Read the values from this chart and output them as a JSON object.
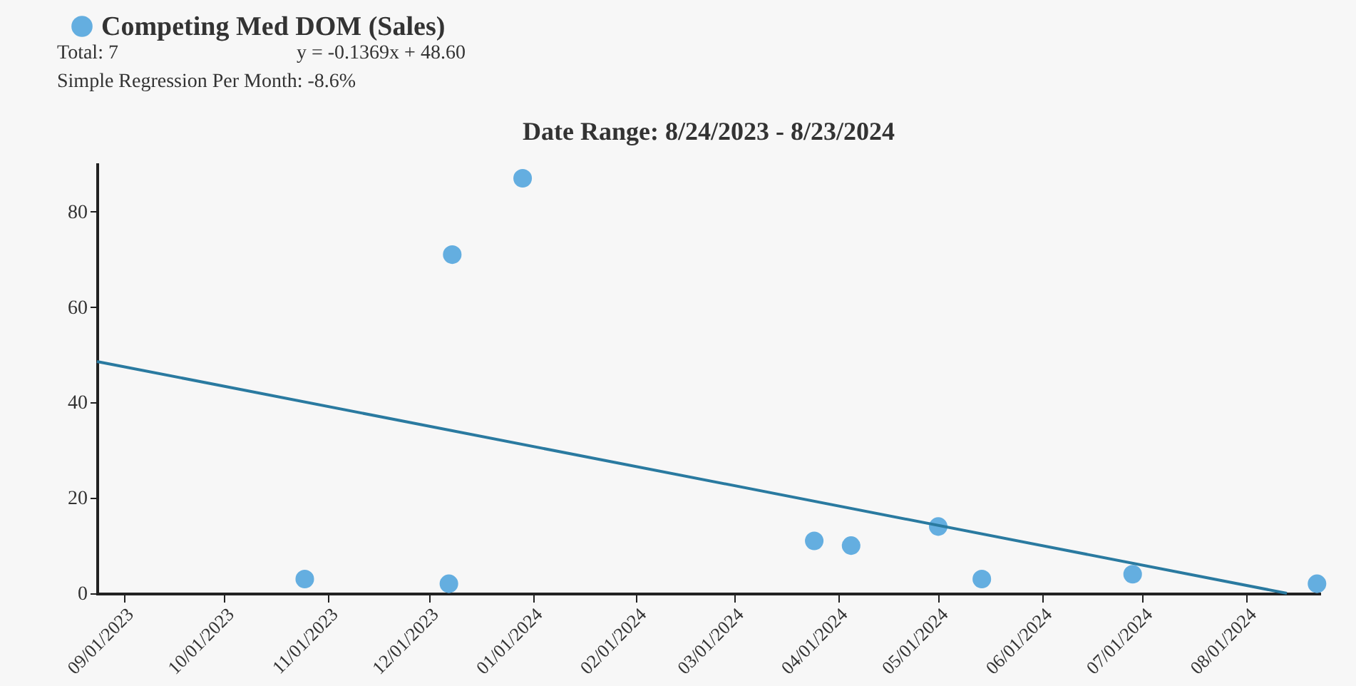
{
  "chart_data": {
    "type": "scatter",
    "title": "Date Range: 8/24/2023 - 8/23/2024",
    "annotations": [
      "Total: 7",
      "y = -0.1369x + 48.60",
      "Simple Regression Per Month: -8.6%"
    ],
    "series": [
      {
        "name": "Competing Med DOM (Sales)",
        "color": "#64aee0",
        "type": "scatter",
        "marker": "circle",
        "x": [
          "2023-10-25",
          "2023-12-08",
          "2023-12-07",
          "2023-12-29",
          "2024-03-25",
          "2024-04-05",
          "2024-05-01",
          "2024-05-14",
          "2024-06-28",
          "2024-08-22"
        ],
        "values": [
          3,
          71,
          2,
          87,
          11,
          10,
          14,
          3,
          4,
          2
        ]
      },
      {
        "color": "#2a7aa0",
        "type": "line",
        "x": [
          "2023-08-24",
          "2024-08-13"
        ],
        "values": [
          48.6,
          0
        ]
      }
    ],
    "xlim": [
      "2023-08-24",
      "2024-08-23"
    ],
    "xticks": [
      {
        "value": "2023-09-01",
        "label": "09/01/2023"
      },
      {
        "value": "2023-10-01",
        "label": "10/01/2023"
      },
      {
        "value": "2023-11-01",
        "label": "11/01/2023"
      },
      {
        "value": "2023-12-01",
        "label": "12/01/2023"
      },
      {
        "value": "2024-01-01",
        "label": "01/01/2024"
      },
      {
        "value": "2024-02-01",
        "label": "02/01/2024"
      },
      {
        "value": "2024-03-01",
        "label": "03/01/2024"
      },
      {
        "value": "2024-04-01",
        "label": "04/01/2024"
      },
      {
        "value": "2024-05-01",
        "label": "05/01/2024"
      },
      {
        "value": "2024-06-01",
        "label": "06/01/2024"
      },
      {
        "value": "2024-07-01",
        "label": "07/01/2024"
      },
      {
        "value": "2024-08-01",
        "label": "08/01/2024"
      }
    ],
    "ylim": [
      0,
      90
    ],
    "yticks": [
      0,
      20,
      40,
      60,
      80
    ],
    "grid": false,
    "legend": "top left"
  }
}
